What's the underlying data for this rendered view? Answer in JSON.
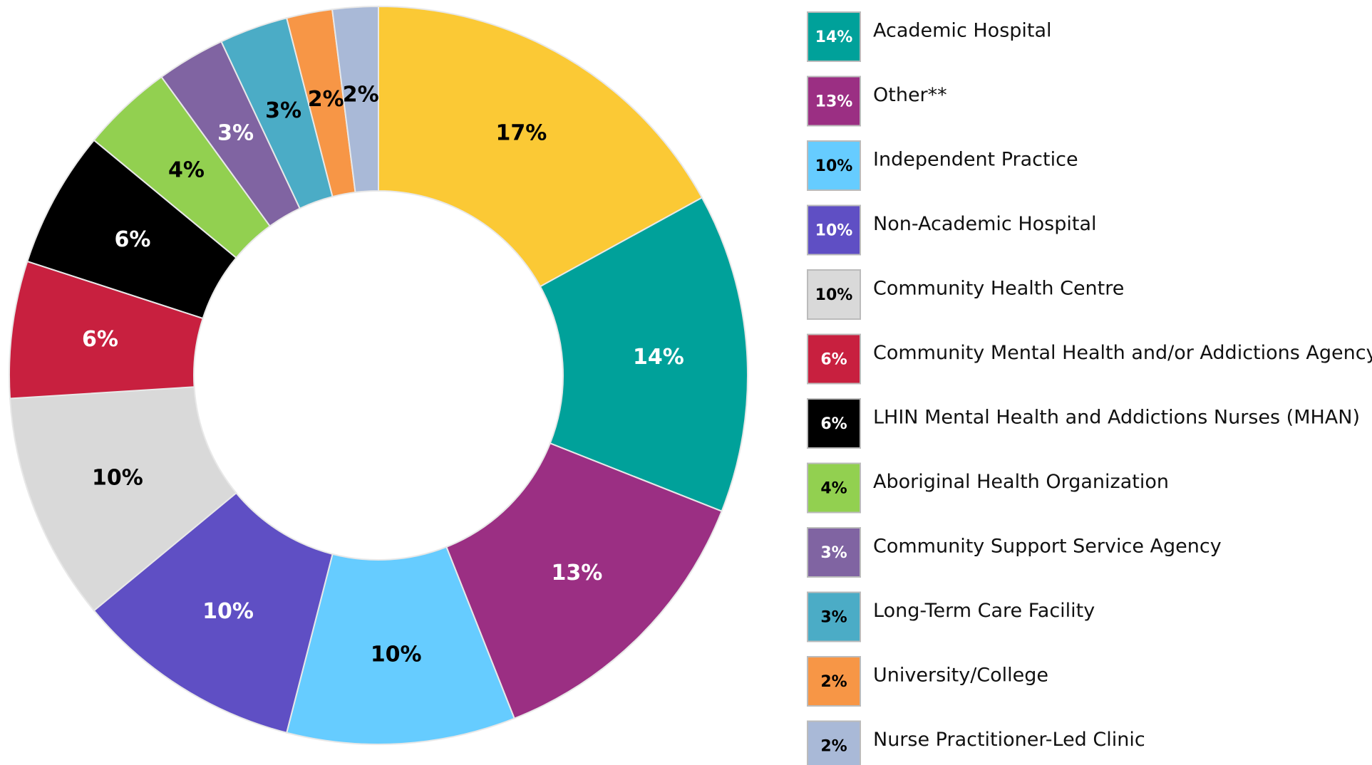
{
  "chart_data": {
    "type": "donut",
    "categories": [
      null,
      "Academic Hospital",
      "Other**",
      "Independent Practice",
      "Non-Academic Hospital",
      "Community Health Centre",
      "Community Mental Health and/or Addictions Agency",
      "LHIN Mental Health and Addictions Nurses (MHAN)",
      "Aboriginal Health Organization",
      "Community Support Service Agency",
      "Long-Term Care Facility",
      "University/College",
      "Nurse Practitioner-Led Clinic"
    ],
    "values": [
      17,
      14,
      13,
      10,
      10,
      10,
      6,
      6,
      4,
      3,
      3,
      2,
      2
    ],
    "value_labels": [
      "17%",
      "14%",
      "13%",
      "10%",
      "10%",
      "10%",
      "6%",
      "6%",
      "4%",
      "3%",
      "3%",
      "2%",
      "2%"
    ],
    "colors": [
      "#FBC935",
      "#00A19A",
      "#9B2F83",
      "#66CCFF",
      "#5F4FC4",
      "#D9D9D9",
      "#C8203F",
      "#000000",
      "#92D050",
      "#8064A2",
      "#4BACC6",
      "#F79646",
      "#A9B9D7"
    ],
    "legend": "right"
  }
}
